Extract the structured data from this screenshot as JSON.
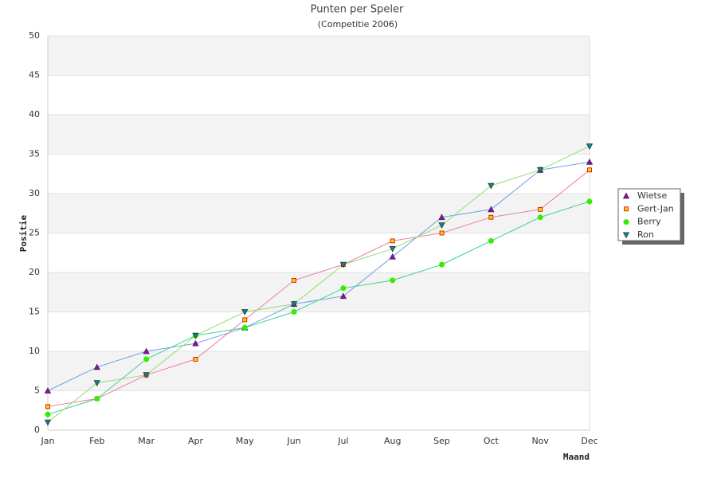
{
  "chart_data": {
    "type": "line",
    "title": "Punten per Speler",
    "subtitle": "(Competitie 2006)",
    "x_label": "Maand",
    "y_label": "Positie",
    "categories": [
      "Jan",
      "Feb",
      "Mar",
      "Apr",
      "May",
      "Jun",
      "Jul",
      "Aug",
      "Sep",
      "Oct",
      "Nov",
      "Dec"
    ],
    "ylim": [
      0,
      50
    ],
    "yticks": [
      0,
      5,
      10,
      15,
      20,
      25,
      30,
      35,
      40,
      45,
      50
    ],
    "grid": true,
    "legend": "right",
    "series": [
      {
        "name": "Wietse",
        "color": "#6f9fe8",
        "marker": "triangle-up",
        "marker_color": "#9900cc",
        "values": [
          5,
          8,
          10,
          11,
          13,
          16,
          17,
          22,
          27,
          28,
          33,
          34
        ]
      },
      {
        "name": "Gert-Jan",
        "color": "#ef7f9f",
        "marker": "square",
        "marker_color": "#ffcc00",
        "values": [
          3,
          4,
          7,
          9,
          14,
          19,
          21,
          24,
          25,
          27,
          28,
          33
        ]
      },
      {
        "name": "Berry",
        "color": "#3fcf8f",
        "marker": "circle",
        "marker_color": "#33ee00",
        "values": [
          2,
          4,
          9,
          12,
          13,
          15,
          18,
          19,
          21,
          24,
          27,
          29
        ]
      },
      {
        "name": "Ron",
        "color": "#8fdf6f",
        "marker": "triangle-down",
        "marker_color": "#008b8b",
        "values": [
          1,
          6,
          7,
          12,
          15,
          16,
          21,
          23,
          26,
          31,
          33,
          36
        ]
      }
    ]
  }
}
